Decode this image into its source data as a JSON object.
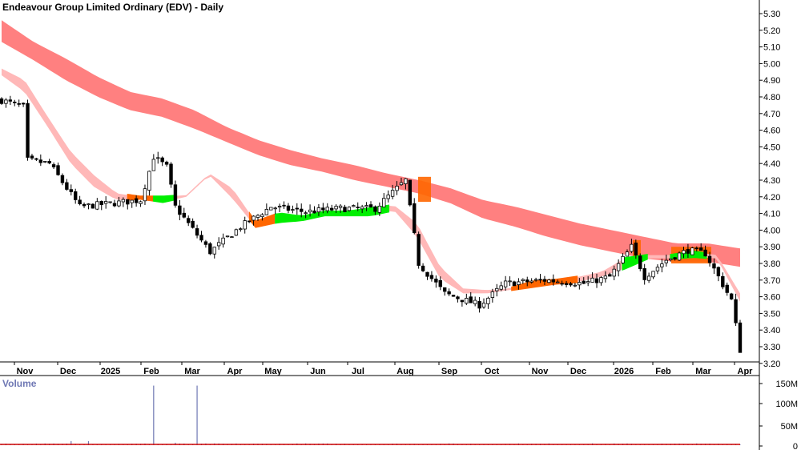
{
  "chart_data": [
    {
      "type": "candlestick",
      "title": "Endeavour Group Limited Ordinary (EDV) - Daily",
      "x_tick_labels": [
        "Nov",
        "Dec",
        "2025",
        "Feb",
        "Mar",
        "Apr",
        "May",
        "Jun",
        "Jul",
        "Aug",
        "Sep",
        "Oct",
        "Nov",
        "Dec",
        "2026",
        "Feb",
        "Mar",
        "Apr"
      ],
      "y_tick_labels": [
        "5.30",
        "5.20",
        "5.10",
        "5.00",
        "4.90",
        "4.80",
        "4.70",
        "4.60",
        "4.50",
        "4.40",
        "4.30",
        "4.20",
        "4.10",
        "4.00",
        "3.90",
        "3.80",
        "3.70",
        "3.60",
        "3.50",
        "3.40",
        "3.30",
        "3.20"
      ],
      "ylim": [
        3.17,
        5.36
      ],
      "grid": false,
      "price_path": [
        {
          "x": 0,
          "y": 4.78
        },
        {
          "x": 5,
          "y": 4.74
        },
        {
          "x": 6,
          "y": 4.42
        },
        {
          "x": 11,
          "y": 4.4
        },
        {
          "x": 18,
          "y": 4.14
        },
        {
          "x": 25,
          "y": 4.16
        },
        {
          "x": 32,
          "y": 4.18
        },
        {
          "x": 35,
          "y": 4.44
        },
        {
          "x": 38,
          "y": 4.38
        },
        {
          "x": 40,
          "y": 4.14
        },
        {
          "x": 48,
          "y": 3.87
        },
        {
          "x": 55,
          "y": 4.02
        },
        {
          "x": 62,
          "y": 4.14
        },
        {
          "x": 70,
          "y": 4.11
        },
        {
          "x": 78,
          "y": 4.13
        },
        {
          "x": 86,
          "y": 4.13
        },
        {
          "x": 93,
          "y": 4.3
        },
        {
          "x": 96,
          "y": 3.8
        },
        {
          "x": 102,
          "y": 3.62
        },
        {
          "x": 110,
          "y": 3.55
        },
        {
          "x": 116,
          "y": 3.68
        },
        {
          "x": 125,
          "y": 3.7
        },
        {
          "x": 134,
          "y": 3.68
        },
        {
          "x": 140,
          "y": 3.72
        },
        {
          "x": 145,
          "y": 3.9
        },
        {
          "x": 148,
          "y": 3.72
        },
        {
          "x": 153,
          "y": 3.82
        },
        {
          "x": 158,
          "y": 3.88
        },
        {
          "x": 162,
          "y": 3.86
        },
        {
          "x": 165,
          "y": 3.72
        },
        {
          "x": 168,
          "y": 3.58
        },
        {
          "x": 170,
          "y": 3.28
        }
      ],
      "moving_average_bands": [
        {
          "name": "long",
          "color": "#ff8080",
          "upper": [
            5.26,
            5.13,
            5.03,
            4.92,
            4.83,
            4.79,
            4.72,
            4.62,
            4.54,
            4.48,
            4.43,
            4.39,
            4.34,
            4.3,
            4.25,
            4.18,
            4.14,
            4.09,
            4.04,
            4.0,
            3.96,
            3.92,
            3.92,
            3.89
          ],
          "lower": [
            5.13,
            5.02,
            4.9,
            4.8,
            4.72,
            4.68,
            4.61,
            4.53,
            4.45,
            4.39,
            4.35,
            4.3,
            4.26,
            4.22,
            4.16,
            4.07,
            4.02,
            3.96,
            3.91,
            3.87,
            3.83,
            3.81,
            3.81,
            3.78
          ]
        },
        {
          "name": "short",
          "color": "#ffb8b8",
          "upper": [
            4.97,
            4.9,
            4.68,
            4.47,
            4.33,
            4.22,
            4.2,
            4.2,
            4.21,
            4.34,
            4.25,
            4.05,
            4.1,
            4.08,
            4.11,
            4.11,
            4.13,
            4.15,
            4.04,
            3.78,
            3.65,
            3.64,
            3.65,
            3.69,
            3.7,
            3.72,
            3.75,
            3.83,
            3.85,
            3.85,
            3.87,
            3.85,
            3.62
          ],
          "lower": [
            4.93,
            4.83,
            4.62,
            4.4,
            4.26,
            4.18,
            4.19,
            4.17,
            4.2,
            4.33,
            4.19,
            4.02,
            4.05,
            4.06,
            4.09,
            4.09,
            4.09,
            4.12,
            3.96,
            3.71,
            3.62,
            3.62,
            3.64,
            3.66,
            3.68,
            3.69,
            3.72,
            3.77,
            3.83,
            3.83,
            3.84,
            3.83,
            3.57
          ]
        }
      ],
      "band_crossover_colors": {
        "bullish": "#00ee00",
        "bearish": "#ff6600"
      }
    },
    {
      "type": "bar",
      "title": "Volume",
      "y_tick_labels": [
        "150M",
        "100M",
        "50M",
        "0"
      ],
      "ylim": [
        0,
        150
      ],
      "ylabel_unit": "M",
      "typical_volume": 3,
      "volume_spikes": [
        {
          "x": 35,
          "value": 145
        },
        {
          "x": 16,
          "value": 10
        },
        {
          "x": 40,
          "value": 6
        }
      ],
      "colors": {
        "bar": "#6f78b4",
        "baseline": "#cc0000"
      }
    }
  ]
}
